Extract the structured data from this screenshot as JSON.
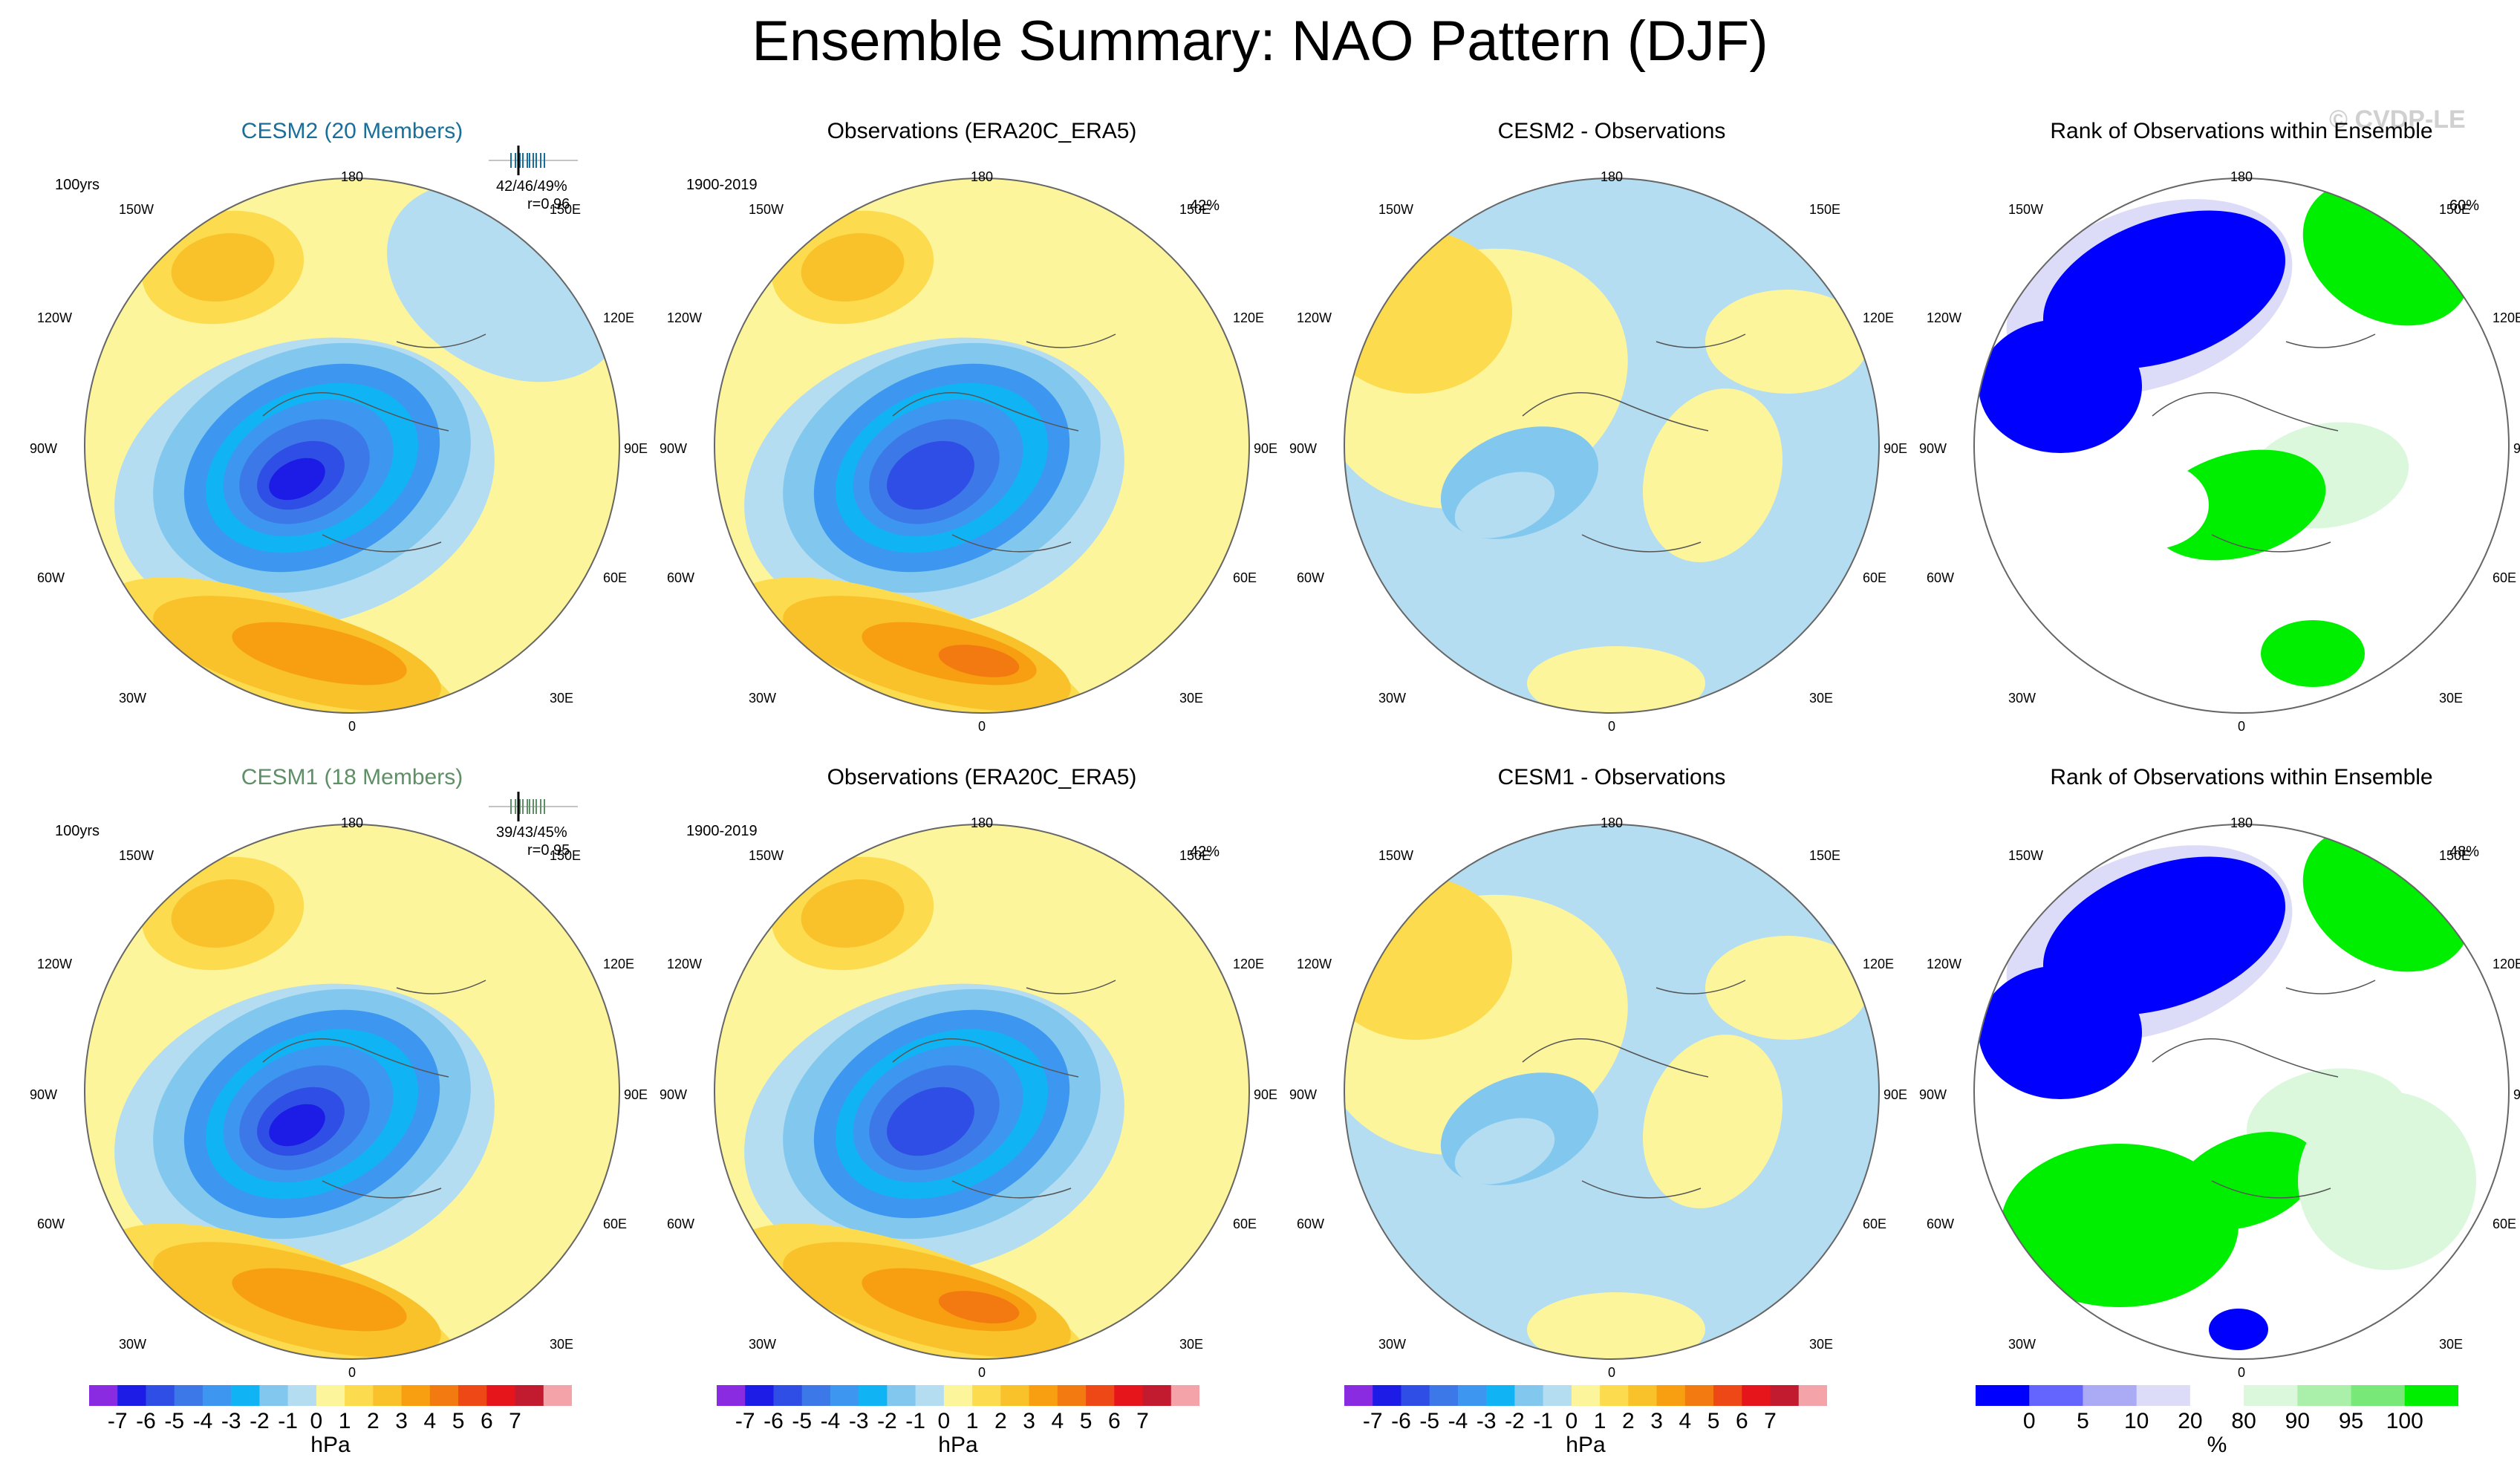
{
  "title": "Ensemble Summary: NAO Pattern (DJF)",
  "watermark": "© CVDP-LE",
  "row1": {
    "p1": {
      "title": "CESM2 (20 Members)",
      "left_label": "100yrs",
      "stat1": "42/46/49%",
      "stat2": "r=0.96"
    },
    "p2": {
      "title": "Observations (ERA20C_ERA5)",
      "left_label": "1900-2019",
      "right_label": "42%"
    },
    "p3": {
      "title": "CESM2 - Observations"
    },
    "p4": {
      "title": "Rank of Observations within Ensemble",
      "right_label": "60%"
    }
  },
  "row2": {
    "p1": {
      "title": "CESM1 (18 Members)",
      "left_label": "100yrs",
      "stat1": "39/43/45%",
      "stat2": "r=0.95"
    },
    "p2": {
      "title": "Observations (ERA20C_ERA5)",
      "left_label": "1900-2019",
      "right_label": "42%"
    },
    "p3": {
      "title": "CESM1 - Observations"
    },
    "p4": {
      "title": "Rank of Observations within Ensemble",
      "right_label": "48%"
    }
  },
  "map_labels": {
    "top": "180",
    "bottom": "0",
    "ul": "150W",
    "ur": "150E",
    "l1": "120W",
    "r1": "120E",
    "l2": "90W",
    "r2": "90E",
    "l3": "60W",
    "r3": "60E",
    "ll": "30W",
    "lr": "30E"
  },
  "chart_data": [
    {
      "type": "colorbar",
      "name": "slp-anomaly",
      "unit": "hPa",
      "tick_labels": [
        "-7",
        "-6",
        "-5",
        "-4",
        "-3",
        "-2",
        "-1",
        "0",
        "1",
        "2",
        "3",
        "4",
        "5",
        "6",
        "7"
      ],
      "colors": [
        "#8a2be2",
        "#1c1ce6",
        "#2f4ee6",
        "#3d78e8",
        "#3d97f0",
        "#10b4f5",
        "#82c8ee",
        "#b4ddf2",
        "#fdf59c",
        "#fcdc4e",
        "#f9c12a",
        "#f79f10",
        "#f37a10",
        "#ee4816",
        "#e6141b",
        "#c21a2e",
        "#f4a3a8"
      ]
    },
    {
      "type": "colorbar",
      "name": "rank",
      "unit": "%",
      "tick_labels": [
        "0",
        "5",
        "10",
        "20",
        "80",
        "90",
        "95",
        "100"
      ],
      "colors": [
        "#0000ff",
        "#6464ff",
        "#aaaaf5",
        "#dcdcf8",
        "#ffffff",
        "#dcf8dc",
        "#aaf0aa",
        "#78e878",
        "#00ee00"
      ]
    }
  ]
}
